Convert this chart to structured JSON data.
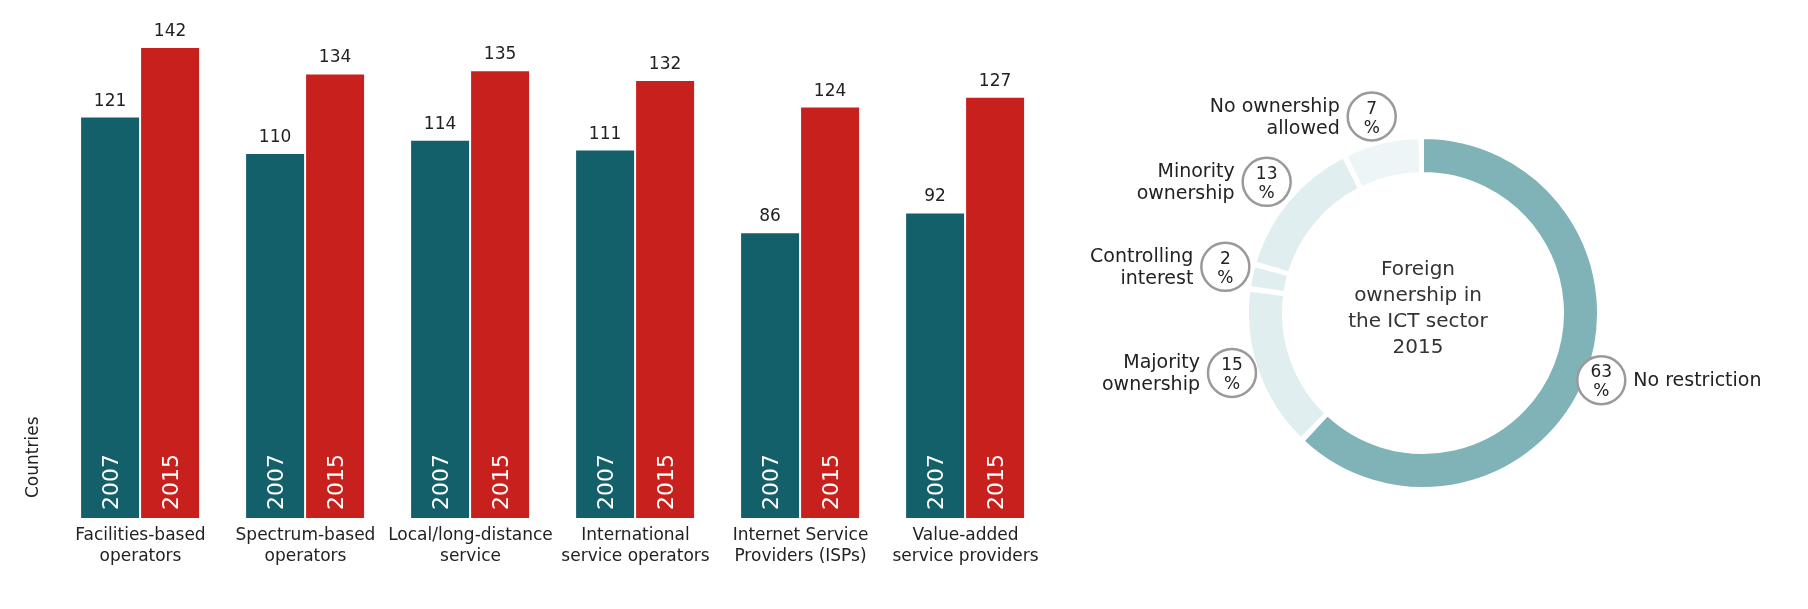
{
  "chart_data": [
    {
      "type": "bar",
      "ylabel": "Countries",
      "categories": [
        "Facilities-based operators",
        "Spectrum-based operators",
        "Local/long-distance service",
        "International service operators",
        "Internet Service Providers (ISPs)",
        "Value-added service providers"
      ],
      "series": [
        {
          "name": "2007",
          "color": "#13606a",
          "values": [
            121,
            110,
            114,
            111,
            86,
            92
          ]
        },
        {
          "name": "2015",
          "color": "#c8201c",
          "values": [
            142,
            134,
            135,
            132,
            124,
            127
          ]
        }
      ],
      "data_labels": true,
      "legend": false,
      "grid": false
    },
    {
      "type": "donut",
      "title": "Foreign ownership in the ICT sector 2015",
      "categories": [
        "No restriction",
        "Majority ownership",
        "Controlling interest",
        "Minority ownership",
        "No ownership allowed"
      ],
      "values": [
        63,
        15,
        2,
        13,
        7
      ],
      "colors": [
        "#7fb3b8",
        "#e1eeef",
        "#e1eeef",
        "#e1eeef",
        "#eef5f6"
      ],
      "value_labels": [
        "63 %",
        "15 %",
        "2 %",
        "13 %",
        "7 %"
      ],
      "legend": false
    }
  ]
}
